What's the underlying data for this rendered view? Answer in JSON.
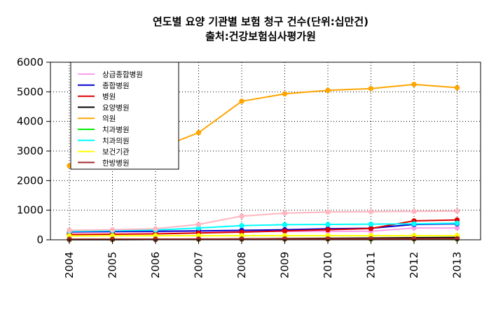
{
  "chart_data": {
    "type": "line",
    "title": "연도별 요양 기관별 보험 청구 건수(단위:십만건)",
    "subtitle": "출처:건강보험심사평가원",
    "categories": [
      "2004",
      "2005",
      "2006",
      "2007",
      "2008",
      "2009",
      "2010",
      "2011",
      "2012",
      "2013"
    ],
    "ylim": [
      0,
      6000
    ],
    "yticks": [
      0,
      1000,
      2000,
      3000,
      4000,
      5000,
      6000
    ],
    "grid": true,
    "legend_position": "top-left",
    "series": [
      {
        "name": "상급종합병원",
        "color": "#ff9eea",
        "values": [
          250,
          260,
          270,
          290,
          290,
          280,
          280,
          290,
          400,
          400
        ]
      },
      {
        "name": "종합병원",
        "color": "#0000cc",
        "values": [
          270,
          280,
          290,
          300,
          320,
          340,
          370,
          390,
          520,
          540
        ]
      },
      {
        "name": "병원",
        "color": "#dd0000",
        "values": [
          180,
          190,
          200,
          230,
          260,
          300,
          340,
          380,
          640,
          670
        ]
      },
      {
        "name": "요양병원",
        "color": "#000000",
        "values": [
          5,
          8,
          12,
          20,
          30,
          40,
          50,
          60,
          70,
          80
        ]
      },
      {
        "name": "의원",
        "color": "#ffa500",
        "values": [
          2500,
          2700,
          3050,
          3620,
          4680,
          4930,
          5050,
          5110,
          5250,
          5140
        ]
      },
      {
        "name": "치과병원",
        "color": "#00ee00",
        "values": [
          15,
          16,
          17,
          18,
          19,
          20,
          21,
          22,
          23,
          24
        ]
      },
      {
        "name": "치과의원",
        "color": "#00ffff",
        "values": [
          290,
          310,
          330,
          400,
          480,
          510,
          520,
          530,
          540,
          560
        ]
      },
      {
        "name": "보건기관",
        "color": "#ffff00",
        "values": [
          130,
          135,
          140,
          140,
          140,
          140,
          140,
          140,
          140,
          140
        ]
      },
      {
        "name": "한방병원",
        "color": "#a52a2a",
        "values": [
          20,
          22,
          24,
          26,
          28,
          30,
          32,
          34,
          36,
          38
        ]
      },
      {
        "name": "",
        "color": "#ffb6c1",
        "values": [
          320,
          340,
          370,
          520,
          800,
          900,
          940,
          950,
          960,
          970
        ]
      }
    ]
  }
}
